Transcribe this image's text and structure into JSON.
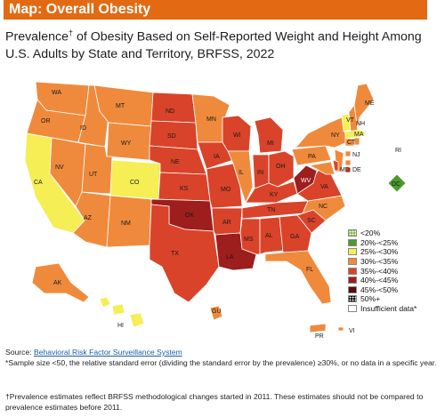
{
  "header": {
    "title": "Map: Overall Obesity"
  },
  "subtitle": {
    "line_part1": "Prevalence",
    "dagger": "†",
    "line_part2": " of Obesity Based on Self-Reported Weight and Height Among U.S. Adults by State and Territory, BRFSS, 2022"
  },
  "colors": {
    "lt20": "#7bc043",
    "20to25": "#4a9b2b",
    "25to30": "#f5ee55",
    "30to35": "#ef8a3d",
    "35to40": "#d9432a",
    "40to45": "#9e1d1d",
    "45to50": "#5a0c0c",
    "50plus": "#000000",
    "insufficient": "#ffffff"
  },
  "legend": {
    "items": [
      {
        "label": "<20%",
        "key": "lt20"
      },
      {
        "label": "20%-<25%",
        "key": "20to25"
      },
      {
        "label": "25%-<30%",
        "key": "25to30"
      },
      {
        "label": "30%-<35%",
        "key": "30to35"
      },
      {
        "label": "35%-<40%",
        "key": "35to40"
      },
      {
        "label": "40%-<45%",
        "key": "40to45"
      },
      {
        "label": "45%-<50%",
        "key": "45to50"
      },
      {
        "label": "50%+",
        "key": "50plus"
      },
      {
        "label": "Insufficient data*",
        "key": "insufficient"
      }
    ]
  },
  "states": {
    "WA": "30to35",
    "OR": "30to35",
    "CA": "25to30",
    "NV": "30to35",
    "ID": "30to35",
    "MT": "30to35",
    "WY": "30to35",
    "UT": "30to35",
    "CO": "25to30",
    "AZ": "30to35",
    "NM": "30to35",
    "ND": "35to40",
    "SD": "35to40",
    "NE": "35to40",
    "KS": "35to40",
    "OK": "40to45",
    "TX": "35to40",
    "MN": "30to35",
    "IA": "35to40",
    "MO": "35to40",
    "AR": "35to40",
    "LA": "40to45",
    "WI": "35to40",
    "IL": "30to35",
    "MI": "35to40",
    "IN": "35to40",
    "OH": "35to40",
    "KY": "35to40",
    "TN": "35to40",
    "MS": "35to40",
    "AL": "35to40",
    "GA": "35to40",
    "FL": "30to35",
    "SC": "35to40",
    "NC": "30to35",
    "VA": "35to40",
    "WV": "40to45",
    "PA": "30to35",
    "NY": "30to35",
    "NJ": "30to35",
    "DE": "35to40",
    "MD": "30to35",
    "DC": "20to25",
    "CT": "30to35",
    "RI": "30to35",
    "MA": "25to30",
    "VT": "25to30",
    "NH": "30to35",
    "ME": "30to35",
    "AK": "30to35",
    "HI": "25to30",
    "GU": "30to35",
    "PR": "30to35",
    "VI": "30to35"
  },
  "source": {
    "prefix": "Source: ",
    "link": "Behavioral Risk Factor Surveillance System",
    "note": "*Sample size <50, the relative standard error (dividing the standard error by the prevalence) ≥30%, or no data in a specific year."
  },
  "footnote": {
    "text": "†Prevalence estimates reflect BRFSS methodological changes started in 2011. These estimates should not be compared to prevalence estimates before 2011."
  }
}
